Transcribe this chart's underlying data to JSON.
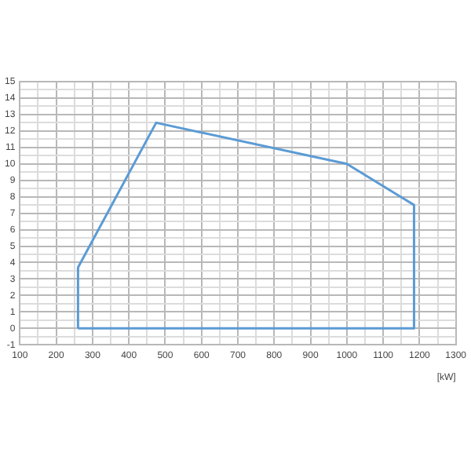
{
  "chart_data": {
    "type": "line",
    "xlabel": "[kW]",
    "series": [
      {
        "color": "#5b9bd5",
        "x": [
          260,
          260,
          475,
          1000,
          1185,
          1185
        ],
        "values": [
          0,
          3.7,
          12.5,
          10,
          7.5,
          0
        ]
      },
      {
        "color": "#5b9bd5",
        "x": [
          260,
          1185
        ],
        "values": [
          0,
          0
        ]
      }
    ],
    "xlim": [
      100,
      1300
    ],
    "xticks": [
      100,
      {
        "value": 150,
        "label": null
      },
      200,
      {
        "value": 250,
        "label": null
      },
      300,
      {
        "value": 350,
        "label": null
      },
      400,
      {
        "value": 450,
        "label": null
      },
      500,
      {
        "value": 550,
        "label": null
      },
      600,
      {
        "value": 650,
        "label": null
      },
      700,
      {
        "value": 750,
        "label": null
      },
      800,
      {
        "value": 850,
        "label": null
      },
      900,
      {
        "value": 950,
        "label": null
      },
      1000,
      {
        "value": 1050,
        "label": null
      },
      1100,
      {
        "value": 1150,
        "label": null
      },
      1200,
      {
        "value": 1250,
        "label": null
      },
      1300
    ],
    "ylim": [
      -1,
      15
    ],
    "yticks": [
      -1,
      {
        "value": -0.5,
        "label": null
      },
      0,
      {
        "value": 0.5,
        "label": null
      },
      1,
      {
        "value": 1.5,
        "label": null
      },
      2,
      {
        "value": 2.5,
        "label": null
      },
      3,
      {
        "value": 3.5,
        "label": null
      },
      4,
      {
        "value": 4.5,
        "label": null
      },
      5,
      {
        "value": 5.5,
        "label": null
      },
      6,
      {
        "value": 6.5,
        "label": null
      },
      7,
      {
        "value": 7.5,
        "label": null
      },
      8,
      {
        "value": 8.5,
        "label": null
      },
      9,
      {
        "value": 9.5,
        "label": null
      },
      10,
      {
        "value": 10.5,
        "label": null
      },
      11,
      {
        "value": 11.5,
        "label": null
      },
      12,
      {
        "value": 12.5,
        "label": null
      },
      13,
      {
        "value": 13.5,
        "label": null
      },
      14,
      {
        "value": 14.5,
        "label": null
      },
      15
    ],
    "grid": true,
    "marker": "none",
    "line_style": "solid",
    "legend": false
  }
}
